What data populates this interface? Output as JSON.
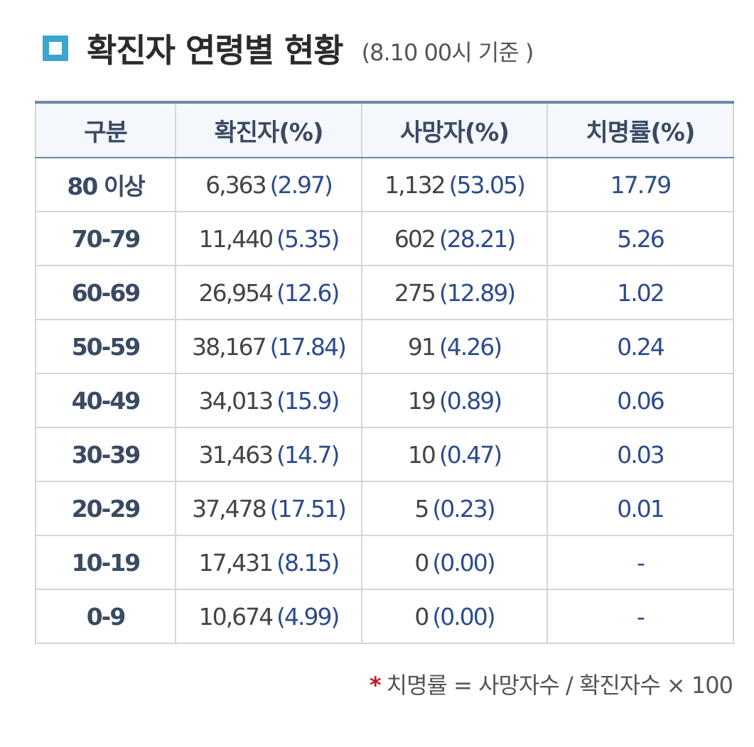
{
  "header": {
    "title": "확진자 연령별 현황",
    "basis": "(8.10 00시 기준 )"
  },
  "table": {
    "columns": [
      "구분",
      "확진자(%)",
      "사망자(%)",
      "치명률(%)"
    ],
    "rows": [
      {
        "age": "80 이상",
        "cases": "6,363",
        "cases_pct": "(2.97)",
        "deaths": "1,132",
        "deaths_pct": "(53.05)",
        "fatality": "17.79"
      },
      {
        "age": "70-79",
        "cases": "11,440",
        "cases_pct": "(5.35)",
        "deaths": "602",
        "deaths_pct": "(28.21)",
        "fatality": "5.26"
      },
      {
        "age": "60-69",
        "cases": "26,954",
        "cases_pct": "(12.6)",
        "deaths": "275",
        "deaths_pct": "(12.89)",
        "fatality": "1.02"
      },
      {
        "age": "50-59",
        "cases": "38,167",
        "cases_pct": "(17.84)",
        "deaths": "91",
        "deaths_pct": "(4.26)",
        "fatality": "0.24"
      },
      {
        "age": "40-49",
        "cases": "34,013",
        "cases_pct": "(15.9)",
        "deaths": "19",
        "deaths_pct": "(0.89)",
        "fatality": "0.06"
      },
      {
        "age": "30-39",
        "cases": "31,463",
        "cases_pct": "(14.7)",
        "deaths": "10",
        "deaths_pct": "(0.47)",
        "fatality": "0.03"
      },
      {
        "age": "20-29",
        "cases": "37,478",
        "cases_pct": "(17.51)",
        "deaths": "5",
        "deaths_pct": "(0.23)",
        "fatality": "0.01"
      },
      {
        "age": "10-19",
        "cases": "17,431",
        "cases_pct": "(8.15)",
        "deaths": "0",
        "deaths_pct": "(0.00)",
        "fatality": "-"
      },
      {
        "age": "0-9",
        "cases": "10,674",
        "cases_pct": "(4.99)",
        "deaths": "0",
        "deaths_pct": "(0.00)",
        "fatality": "-"
      }
    ]
  },
  "footnote": {
    "marker": "*",
    "text": "치명률 = 사망자수 / 확진자수 × 100"
  },
  "colors": {
    "accent": "#3aa6cf",
    "header_border": "#6c87a8",
    "percent_text": "#2b4c8c",
    "footnote_marker": "#c0191f"
  },
  "icons": {
    "title_marker": "square-outline-icon"
  }
}
